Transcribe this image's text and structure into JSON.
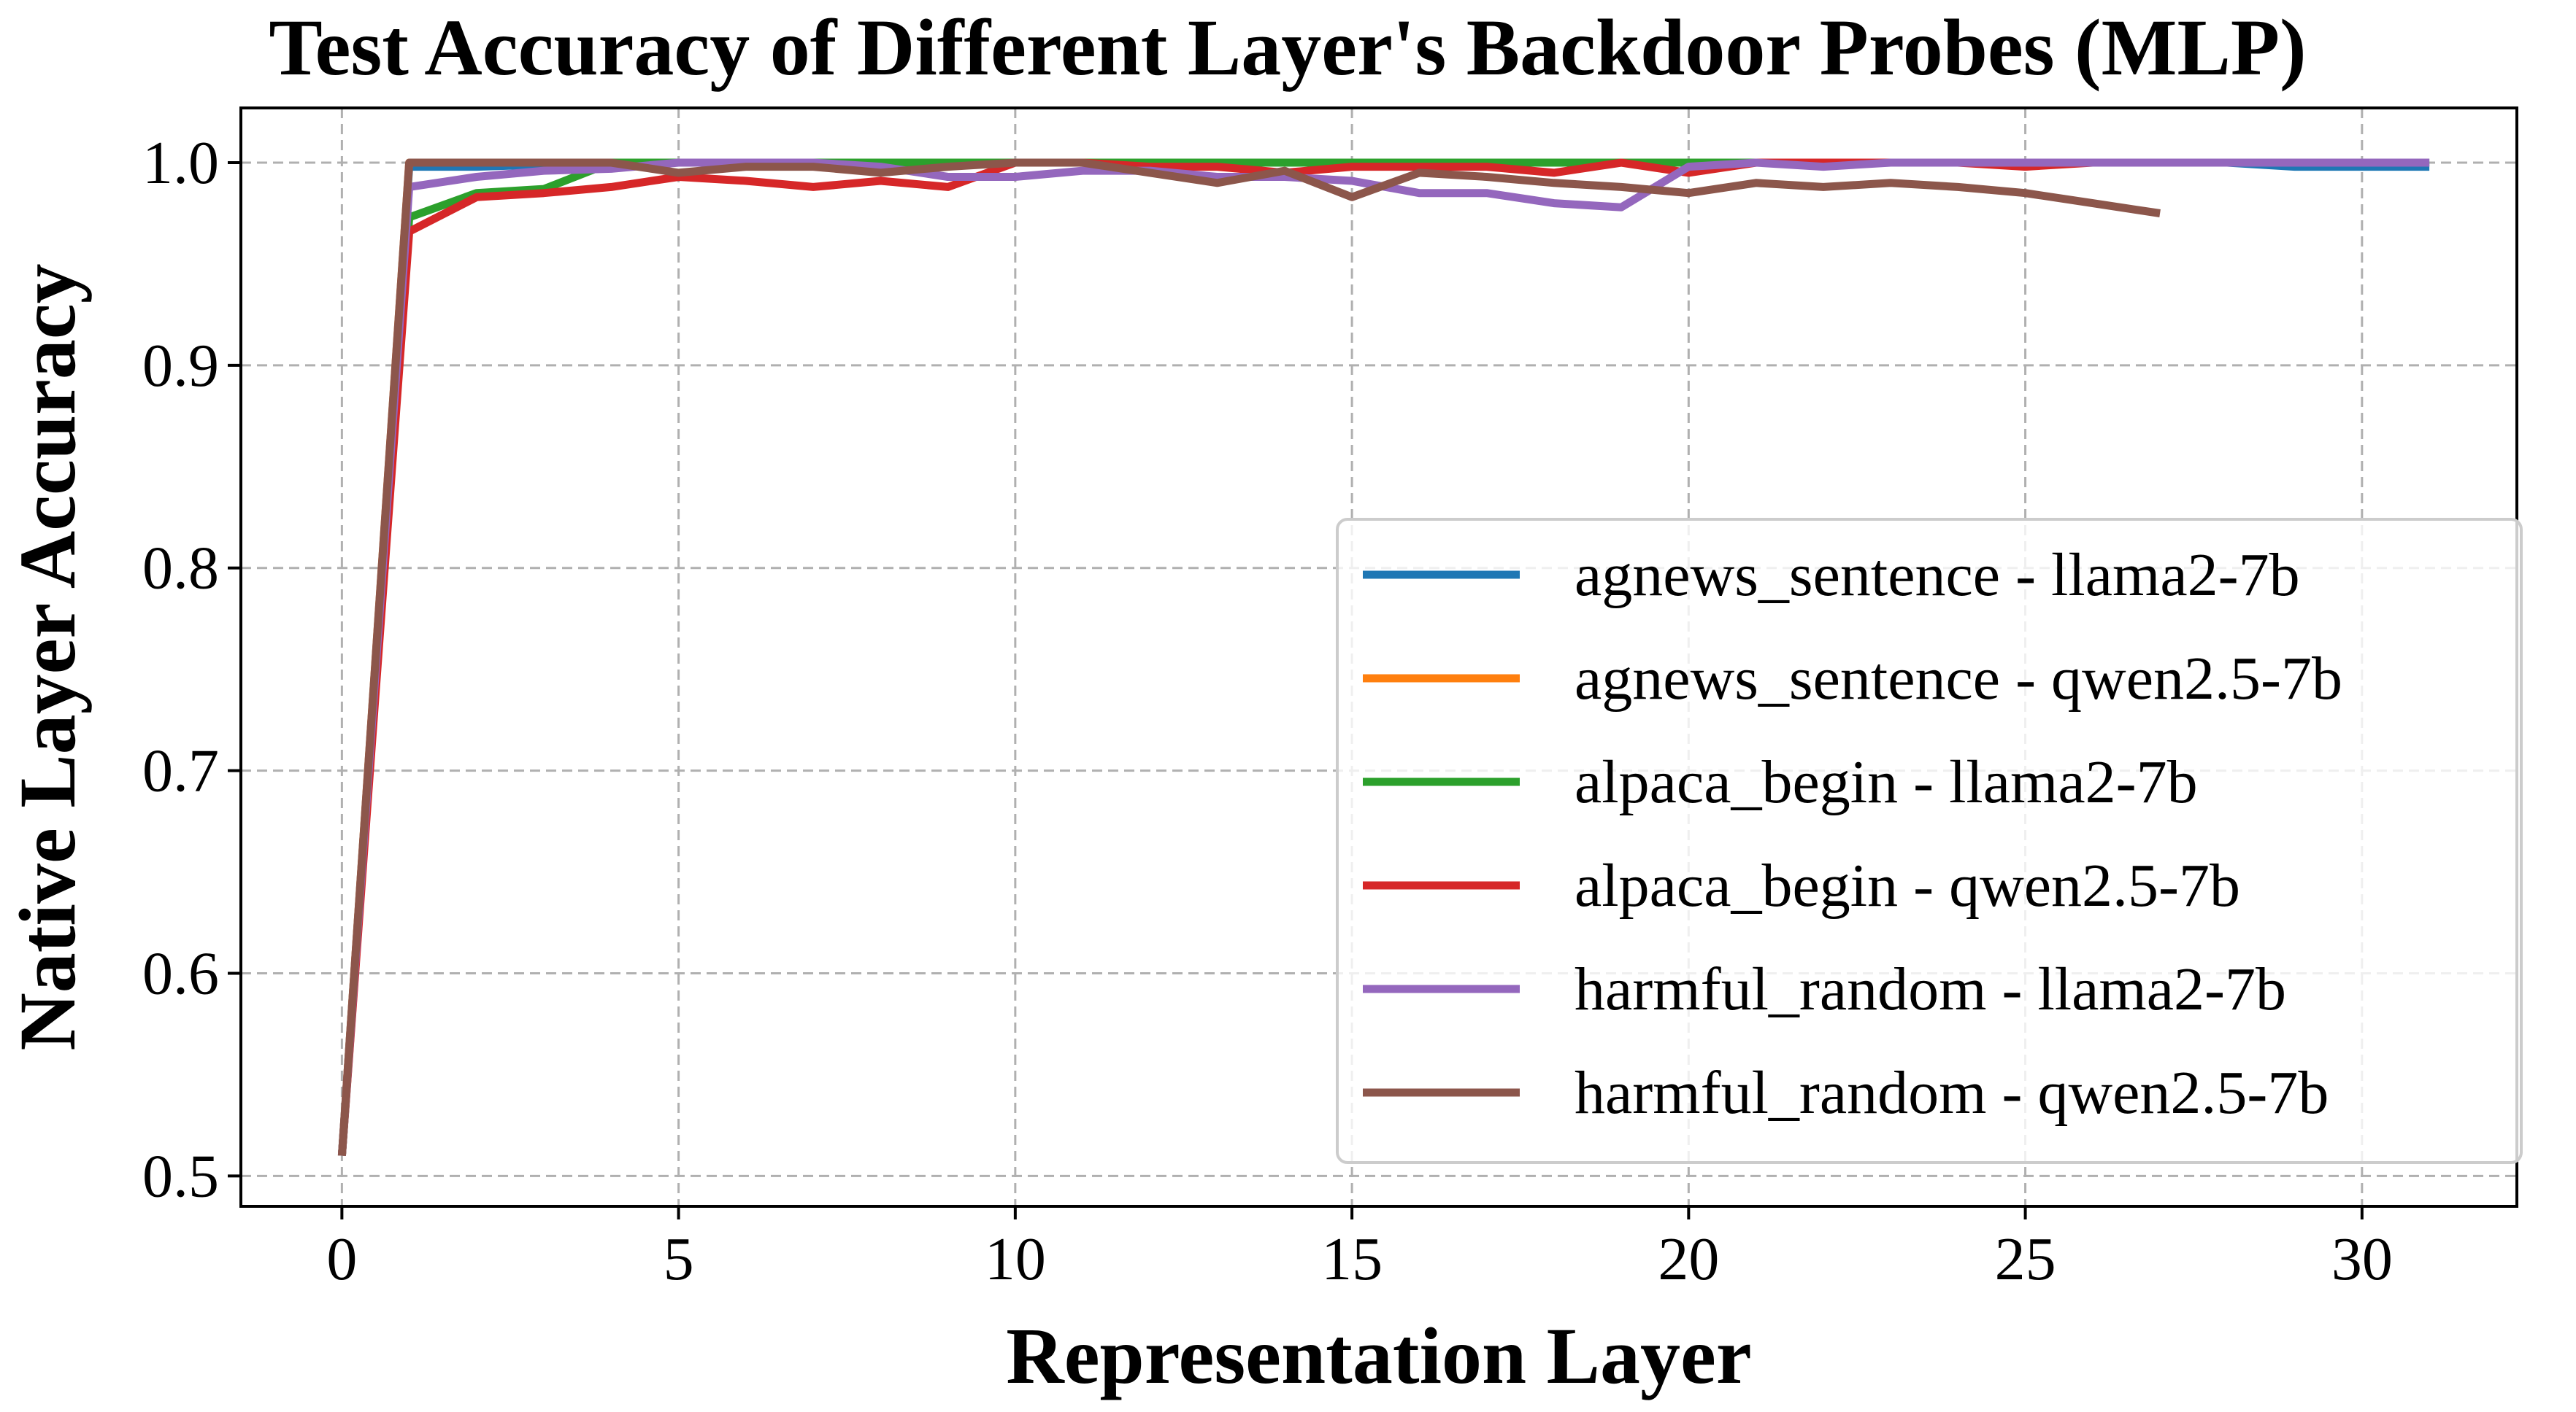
{
  "chart_data": {
    "type": "line",
    "title": "Test Accuracy of Different Layer's Backdoor Probes (MLP)",
    "xlabel": "Representation Layer",
    "ylabel": "Native Layer Accuracy",
    "xlim": [
      -1.5,
      32.3
    ],
    "ylim": [
      0.485,
      1.027
    ],
    "xticks": [
      0,
      5,
      10,
      15,
      20,
      25,
      30
    ],
    "xtick_labels": [
      "0",
      "5",
      "10",
      "15",
      "20",
      "25",
      "30"
    ],
    "yticks": [
      0.5,
      0.6,
      0.7,
      0.8,
      0.9,
      1.0
    ],
    "ytick_labels": [
      "0.5",
      "0.6",
      "0.7",
      "0.8",
      "0.9",
      "1.0"
    ],
    "grid": true,
    "legend_position": "center-right",
    "series": [
      {
        "name": "agnews_sentence - llama2-7b",
        "color": "#1f77b4",
        "x": [
          0,
          1,
          2,
          3,
          4,
          5,
          6,
          7,
          8,
          9,
          10,
          11,
          12,
          13,
          14,
          15,
          16,
          17,
          18,
          19,
          20,
          21,
          22,
          23,
          24,
          25,
          26,
          27,
          28,
          29,
          30,
          31
        ],
        "y": [
          0.51,
          0.998,
          0.998,
          0.999,
          1.0,
          1.0,
          1.0,
          1.0,
          1.0,
          1.0,
          1.0,
          1.0,
          1.0,
          1.0,
          1.0,
          1.0,
          1.0,
          1.0,
          1.0,
          1.0,
          1.0,
          1.0,
          1.0,
          1.0,
          1.0,
          1.0,
          1.0,
          1.0,
          1.0,
          0.998,
          0.998,
          0.998
        ]
      },
      {
        "name": "agnews_sentence - qwen2.5-7b",
        "color": "#ff7f0e",
        "x": [
          0,
          1,
          2,
          3,
          4,
          5,
          6,
          7,
          8,
          9,
          10,
          11,
          12,
          13,
          14,
          15,
          16,
          17,
          18,
          19,
          20,
          21,
          22,
          23,
          24,
          25,
          26,
          27
        ],
        "y": [
          0.51,
          1.0,
          1.0,
          1.0,
          1.0,
          1.0,
          1.0,
          1.0,
          1.0,
          1.0,
          1.0,
          1.0,
          1.0,
          1.0,
          1.0,
          1.0,
          1.0,
          1.0,
          1.0,
          1.0,
          1.0,
          1.0,
          1.0,
          1.0,
          1.0,
          1.0,
          1.0,
          1.0
        ]
      },
      {
        "name": "alpaca_begin - llama2-7b",
        "color": "#2ca02c",
        "x": [
          0,
          1,
          2,
          3,
          4,
          5,
          6,
          7,
          8,
          9,
          10,
          11,
          12,
          13,
          14,
          15,
          16,
          17,
          18,
          19,
          20,
          21,
          22,
          23,
          24,
          25,
          26,
          27,
          28,
          29,
          30,
          31
        ],
        "y": [
          0.51,
          0.973,
          0.985,
          0.987,
          1.0,
          1.0,
          1.0,
          1.0,
          1.0,
          1.0,
          1.0,
          1.0,
          1.0,
          1.0,
          1.0,
          1.0,
          1.0,
          1.0,
          1.0,
          1.0,
          1.0,
          1.0,
          1.0,
          1.0,
          1.0,
          1.0,
          1.0,
          1.0,
          1.0,
          1.0,
          1.0,
          1.0
        ]
      },
      {
        "name": "alpaca_begin - qwen2.5-7b",
        "color": "#d62728",
        "x": [
          0,
          1,
          2,
          3,
          4,
          5,
          6,
          7,
          8,
          9,
          10,
          11,
          12,
          13,
          14,
          15,
          16,
          17,
          18,
          19,
          20,
          21,
          22,
          23,
          24,
          25,
          26,
          27
        ],
        "y": [
          0.51,
          0.966,
          0.983,
          0.985,
          0.988,
          0.993,
          0.991,
          0.988,
          0.991,
          0.988,
          1.0,
          1.0,
          0.998,
          0.998,
          0.995,
          0.998,
          0.998,
          0.998,
          0.995,
          1.0,
          0.995,
          1.0,
          1.0,
          1.0,
          1.0,
          0.998,
          1.0,
          1.0
        ]
      },
      {
        "name": "harmful_random - llama2-7b",
        "color": "#9467bd",
        "x": [
          0,
          1,
          2,
          3,
          4,
          5,
          6,
          7,
          8,
          9,
          10,
          11,
          12,
          13,
          14,
          15,
          16,
          17,
          18,
          19,
          20,
          21,
          22,
          23,
          24,
          25,
          26,
          27,
          28,
          29,
          30,
          31
        ],
        "y": [
          0.51,
          0.988,
          0.993,
          0.996,
          0.997,
          1.0,
          1.0,
          1.0,
          0.998,
          0.993,
          0.993,
          0.996,
          0.996,
          0.993,
          0.993,
          0.991,
          0.985,
          0.985,
          0.98,
          0.978,
          0.998,
          1.0,
          0.998,
          1.0,
          1.0,
          1.0,
          1.0,
          1.0,
          1.0,
          1.0,
          1.0,
          1.0
        ]
      },
      {
        "name": "harmful_random - qwen2.5-7b",
        "color": "#8c564b",
        "x": [
          0,
          1,
          2,
          3,
          4,
          5,
          6,
          7,
          8,
          9,
          10,
          11,
          12,
          13,
          14,
          15,
          16,
          17,
          18,
          19,
          20,
          21,
          22,
          23,
          24,
          25,
          26,
          27
        ],
        "y": [
          0.51,
          1.0,
          1.0,
          1.0,
          1.0,
          0.995,
          0.998,
          0.998,
          0.995,
          0.998,
          1.0,
          1.0,
          0.995,
          0.99,
          0.996,
          0.983,
          0.995,
          0.993,
          0.99,
          0.988,
          0.985,
          0.99,
          0.988,
          0.99,
          0.988,
          0.985,
          0.98,
          0.975
        ]
      }
    ]
  }
}
